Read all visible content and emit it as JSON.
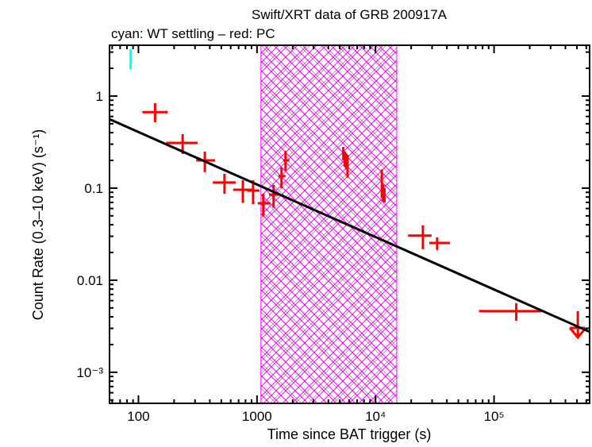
{
  "chart_data": {
    "type": "scatter",
    "title": "Swift/XRT data of GRB 200917A",
    "subtitle": "cyan: WT settling – red: PC",
    "xlabel": "Time since BAT trigger (s)",
    "ylabel": "Count Rate (0.3–10 keV) (s⁻¹)",
    "xscale": "log",
    "yscale": "log",
    "xlim": [
      57,
      640000
    ],
    "ylim": [
      0.00046,
      3.56
    ],
    "x_ticks": [
      {
        "v": 100,
        "label": "100"
      },
      {
        "v": 1000,
        "label": "1000"
      },
      {
        "v": 10000,
        "label": "10⁴"
      },
      {
        "v": 100000,
        "label": "10⁵"
      }
    ],
    "y_ticks": [
      {
        "v": 1,
        "label": "1"
      },
      {
        "v": 0.1,
        "label": "0.1"
      },
      {
        "v": 0.01,
        "label": "0.01"
      },
      {
        "v": 0.001,
        "label": "10⁻³"
      }
    ],
    "grid": false,
    "colors": {
      "wt": "#00ffff",
      "pc": "#ff0000",
      "fit": "#000000",
      "shade": "#ff00ff",
      "shade_inner": "#888888"
    },
    "shaded_interval": [
      1080,
      15100
    ],
    "fit_line": [
      [
        57,
        0.56
      ],
      [
        640000,
        0.00275
      ]
    ],
    "series": [
      {
        "name": "WT settling",
        "color": "#00ffff",
        "points": [
          {
            "x": 86,
            "xlo": 84,
            "xhi": 88,
            "y": 2.59,
            "ylo": 1.96,
            "yhi": 3.23
          }
        ]
      },
      {
        "name": "PC",
        "color": "#ff0000",
        "points": [
          {
            "x": 138,
            "xlo": 108,
            "xhi": 177,
            "y": 0.668,
            "ylo": 0.52,
            "yhi": 0.836
          },
          {
            "x": 236,
            "xlo": 171,
            "xhi": 316,
            "y": 0.31,
            "ylo": 0.235,
            "yhi": 0.386
          },
          {
            "x": 363,
            "xlo": 307,
            "xhi": 443,
            "y": 0.2,
            "ylo": 0.149,
            "yhi": 0.249
          },
          {
            "x": 532,
            "xlo": 424,
            "xhi": 661,
            "y": 0.115,
            "ylo": 0.087,
            "yhi": 0.143
          },
          {
            "x": 760,
            "xlo": 631,
            "xhi": 940,
            "y": 0.096,
            "ylo": 0.069,
            "yhi": 0.122
          },
          {
            "x": 927,
            "xlo": 832,
            "xhi": 1047,
            "y": 0.094,
            "ylo": 0.067,
            "yhi": 0.122
          },
          {
            "x": 1130,
            "xlo": 1016,
            "xhi": 1297,
            "y": 0.0685,
            "ylo": 0.049,
            "yhi": 0.087
          },
          {
            "x": 1380,
            "xlo": 1263,
            "xhi": 1516,
            "y": 0.085,
            "ylo": 0.061,
            "yhi": 0.108
          },
          {
            "x": 1610,
            "xlo": 1520,
            "xhi": 1740,
            "y": 0.135,
            "ylo": 0.1,
            "yhi": 0.168
          },
          {
            "x": 1740,
            "xlo": 1660,
            "xhi": 1875,
            "y": 0.2,
            "ylo": 0.155,
            "yhi": 0.254
          },
          {
            "x": 5350,
            "xlo": 5250,
            "xhi": 5450,
            "y": 0.24,
            "ylo": 0.2,
            "yhi": 0.28
          },
          {
            "x": 5500,
            "xlo": 5400,
            "xhi": 5600,
            "y": 0.21,
            "ylo": 0.17,
            "yhi": 0.25
          },
          {
            "x": 5650,
            "xlo": 5550,
            "xhi": 5750,
            "y": 0.2,
            "ylo": 0.16,
            "yhi": 0.24
          },
          {
            "x": 5800,
            "xlo": 5700,
            "xhi": 5950,
            "y": 0.19,
            "ylo": 0.13,
            "yhi": 0.23
          },
          {
            "x": 11300,
            "xlo": 11100,
            "xhi": 11500,
            "y": 0.1,
            "ylo": 0.078,
            "yhi": 0.16
          },
          {
            "x": 11600,
            "xlo": 11450,
            "xhi": 11800,
            "y": 0.09,
            "ylo": 0.072,
            "yhi": 0.11
          },
          {
            "x": 11900,
            "xlo": 11750,
            "xhi": 12100,
            "y": 0.085,
            "ylo": 0.07,
            "yhi": 0.1
          },
          {
            "x": 25100,
            "xlo": 18800,
            "xhi": 29700,
            "y": 0.0305,
            "ylo": 0.0217,
            "yhi": 0.0394
          },
          {
            "x": 33100,
            "xlo": 28400,
            "xhi": 42400,
            "y": 0.0254,
            "ylo": 0.0213,
            "yhi": 0.0292
          },
          {
            "x": 154000,
            "xlo": 74600,
            "xhi": 251000,
            "y": 0.00461,
            "ylo": 0.00363,
            "yhi": 0.00562
          }
        ]
      },
      {
        "name": "PC upper limit",
        "color": "#ff0000",
        "upper_limits": [
          {
            "x": 509000,
            "xlo": 437000,
            "xhi": 585000,
            "y": 0.0046
          }
        ]
      }
    ]
  }
}
